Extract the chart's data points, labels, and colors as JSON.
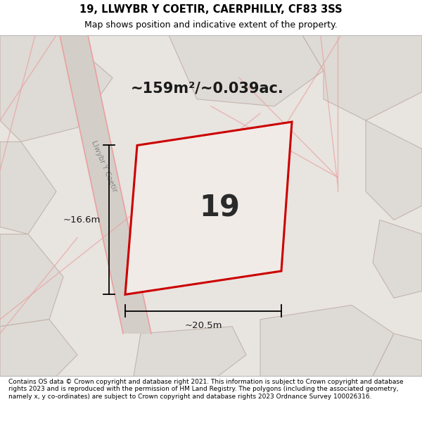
{
  "title_line1": "19, LLWYBR Y COETIR, CAERPHILLY, CF83 3SS",
  "title_line2": "Map shows position and indicative extent of the property.",
  "footer_text": "Contains OS data © Crown copyright and database right 2021. This information is subject to Crown copyright and database rights 2023 and is reproduced with the permission of HM Land Registry. The polygons (including the associated geometry, namely x, y co-ordinates) are subject to Crown copyright and database rights 2023 Ordnance Survey 100026316.",
  "area_label": "~159m²/~0.039ac.",
  "plot_number": "19",
  "width_label": "~20.5m",
  "height_label": "~16.6m",
  "road_label": "Llwybr Y Coetir",
  "bg_color": "#e8e4e0",
  "plot_fill": "#f0ebe7",
  "plot_edge_color": "#cc0000",
  "road_line_color": "#e8a0a0",
  "neighbor_fill": "#dedad5",
  "neighbor_edge": "#c0b0a8"
}
